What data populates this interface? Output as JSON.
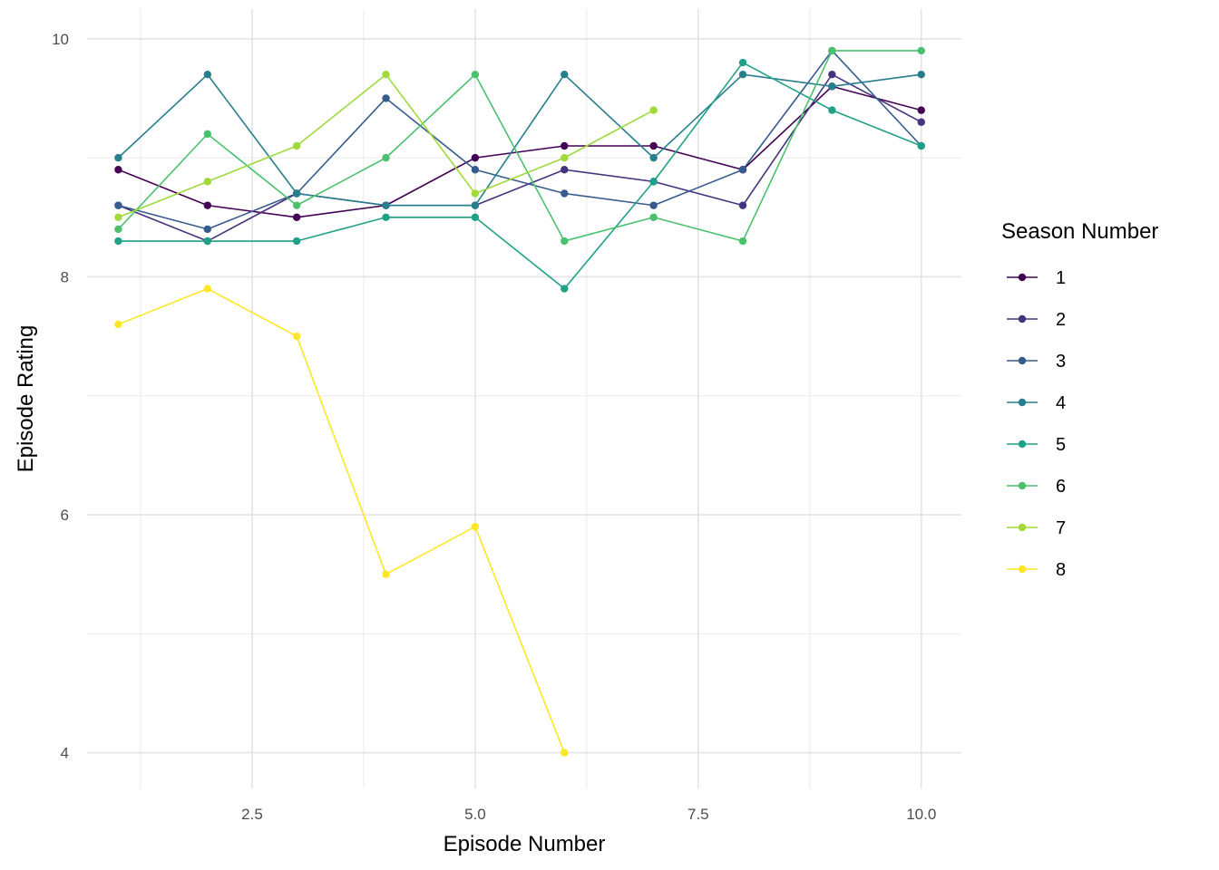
{
  "chart_data": {
    "type": "line",
    "title": "",
    "xlabel": "Episode Number",
    "ylabel": "Episode Rating",
    "xlim": [
      0.65,
      10.45
    ],
    "ylim": [
      3.7,
      10.25
    ],
    "x_ticks": [
      2.5,
      5.0,
      7.5,
      10.0
    ],
    "x_tick_labels": [
      "2.5",
      "5.0",
      "7.5",
      "10.0"
    ],
    "x_minor_ticks": [
      1.25,
      3.75,
      6.25,
      8.75
    ],
    "y_ticks": [
      4,
      6,
      8,
      10
    ],
    "y_tick_labels": [
      "4",
      "6",
      "8",
      "10"
    ],
    "y_minor_ticks": [
      5,
      7,
      9
    ],
    "grid": true,
    "legend": {
      "title": "Season Number",
      "placement": "right"
    },
    "series": [
      {
        "name": "1",
        "color": "#440154",
        "x": [
          1,
          2,
          3,
          4,
          5,
          6,
          7,
          8,
          9,
          10
        ],
        "values": [
          8.9,
          8.6,
          8.5,
          8.6,
          9.0,
          9.1,
          9.1,
          8.9,
          9.6,
          9.4
        ]
      },
      {
        "name": "2",
        "color": "#46337E",
        "x": [
          1,
          2,
          3,
          4,
          5,
          6,
          7,
          8,
          9,
          10
        ],
        "values": [
          8.6,
          8.3,
          8.7,
          8.6,
          8.6,
          8.9,
          8.8,
          8.6,
          9.7,
          9.3
        ]
      },
      {
        "name": "3",
        "color": "#365C8D",
        "x": [
          1,
          2,
          3,
          4,
          5,
          6,
          7,
          8,
          9,
          10
        ],
        "values": [
          8.6,
          8.4,
          8.7,
          9.5,
          8.9,
          8.7,
          8.6,
          8.9,
          9.9,
          9.1
        ]
      },
      {
        "name": "4",
        "color": "#277F8E",
        "x": [
          1,
          2,
          3,
          4,
          5,
          6,
          7,
          8,
          9,
          10
        ],
        "values": [
          9.0,
          9.7,
          8.7,
          8.6,
          8.6,
          9.7,
          9.0,
          9.7,
          9.6,
          9.7
        ]
      },
      {
        "name": "5",
        "color": "#1FA187",
        "x": [
          1,
          2,
          3,
          4,
          5,
          6,
          7,
          8,
          9,
          10
        ],
        "values": [
          8.3,
          8.3,
          8.3,
          8.5,
          8.5,
          7.9,
          8.8,
          9.8,
          9.4,
          9.1
        ]
      },
      {
        "name": "6",
        "color": "#4AC16D",
        "x": [
          1,
          2,
          3,
          4,
          5,
          6,
          7,
          8,
          9,
          10
        ],
        "values": [
          8.4,
          9.2,
          8.6,
          9.0,
          9.7,
          8.3,
          8.5,
          8.3,
          9.9,
          9.9
        ]
      },
      {
        "name": "7",
        "color": "#9FDA3A",
        "x": [
          1,
          2,
          3,
          4,
          5,
          6,
          7
        ],
        "values": [
          8.5,
          8.8,
          9.1,
          9.7,
          8.7,
          9.0,
          9.4
        ]
      },
      {
        "name": "8",
        "color": "#FDE725",
        "x": [
          1,
          2,
          3,
          4,
          5,
          6
        ],
        "values": [
          7.6,
          7.9,
          7.5,
          5.5,
          5.9,
          4.0
        ]
      }
    ]
  }
}
